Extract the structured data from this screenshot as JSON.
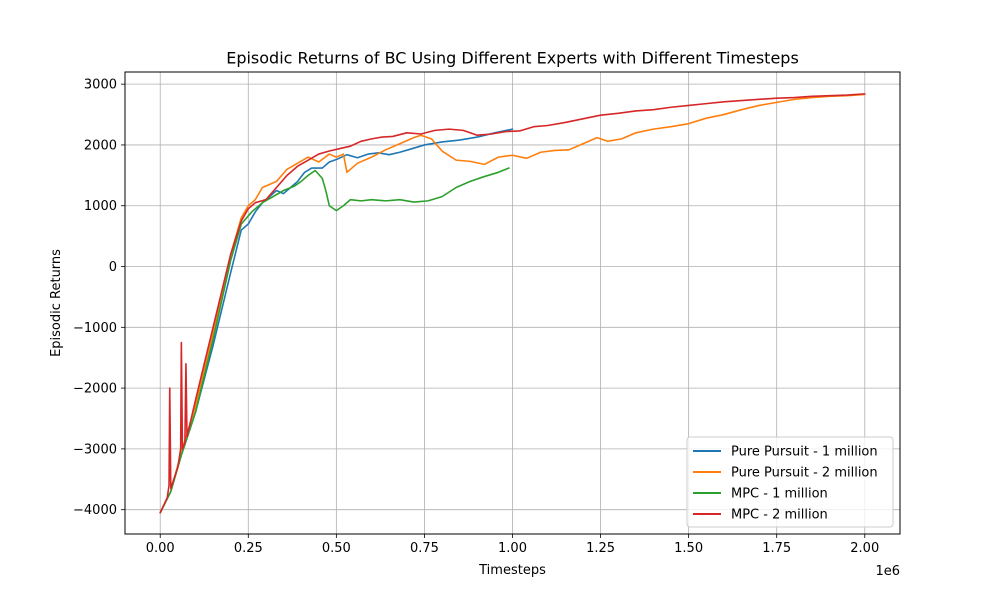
{
  "chart_data": {
    "type": "line",
    "title": "Episodic Returns of BC Using Different Experts with Different Timesteps",
    "xlabel": "Timesteps",
    "ylabel": "Episodic Returns",
    "x_offset_label": "1e6",
    "xlim": [
      -0.1,
      2.1
    ],
    "ylim": [
      -4400,
      3200
    ],
    "xticks": [
      0.0,
      0.25,
      0.5,
      0.75,
      1.0,
      1.25,
      1.5,
      1.75,
      2.0
    ],
    "xtick_labels": [
      "0.00",
      "0.25",
      "0.50",
      "0.75",
      "1.00",
      "1.25",
      "1.50",
      "1.75",
      "2.00"
    ],
    "yticks": [
      -4000,
      -3000,
      -2000,
      -1000,
      0,
      1000,
      2000,
      3000
    ],
    "ytick_labels": [
      "−4000",
      "−3000",
      "−2000",
      "−1000",
      "0",
      "1000",
      "2000",
      "3000"
    ],
    "grid": true,
    "legend_position": "lower-right",
    "series": [
      {
        "name": "Pure Pursuit - 1 million",
        "color": "#1f77b4",
        "points": [
          [
            0.0,
            -4050
          ],
          [
            0.03,
            -3700
          ],
          [
            0.06,
            -3100
          ],
          [
            0.1,
            -2400
          ],
          [
            0.15,
            -1300
          ],
          [
            0.2,
            -100
          ],
          [
            0.23,
            600
          ],
          [
            0.25,
            700
          ],
          [
            0.27,
            900
          ],
          [
            0.29,
            1050
          ],
          [
            0.31,
            1150
          ],
          [
            0.33,
            1250
          ],
          [
            0.35,
            1200
          ],
          [
            0.37,
            1300
          ],
          [
            0.39,
            1400
          ],
          [
            0.41,
            1550
          ],
          [
            0.43,
            1620
          ],
          [
            0.46,
            1620
          ],
          [
            0.48,
            1720
          ],
          [
            0.5,
            1760
          ],
          [
            0.53,
            1840
          ],
          [
            0.56,
            1790
          ],
          [
            0.59,
            1850
          ],
          [
            0.62,
            1870
          ],
          [
            0.65,
            1840
          ],
          [
            0.68,
            1880
          ],
          [
            0.71,
            1930
          ],
          [
            0.75,
            2000
          ],
          [
            0.8,
            2050
          ],
          [
            0.85,
            2080
          ],
          [
            0.9,
            2130
          ],
          [
            0.95,
            2200
          ],
          [
            1.0,
            2260
          ]
        ]
      },
      {
        "name": "Pure Pursuit - 2 million",
        "color": "#ff7f0e",
        "points": [
          [
            0.0,
            -4050
          ],
          [
            0.03,
            -3700
          ],
          [
            0.06,
            -3050
          ],
          [
            0.1,
            -2300
          ],
          [
            0.15,
            -1100
          ],
          [
            0.2,
            200
          ],
          [
            0.23,
            800
          ],
          [
            0.25,
            1000
          ],
          [
            0.27,
            1100
          ],
          [
            0.29,
            1300
          ],
          [
            0.31,
            1350
          ],
          [
            0.33,
            1400
          ],
          [
            0.36,
            1600
          ],
          [
            0.39,
            1700
          ],
          [
            0.42,
            1800
          ],
          [
            0.45,
            1720
          ],
          [
            0.48,
            1850
          ],
          [
            0.5,
            1800
          ],
          [
            0.52,
            1850
          ],
          [
            0.53,
            1550
          ],
          [
            0.56,
            1700
          ],
          [
            0.6,
            1800
          ],
          [
            0.64,
            1920
          ],
          [
            0.68,
            2020
          ],
          [
            0.72,
            2120
          ],
          [
            0.74,
            2160
          ],
          [
            0.77,
            2100
          ],
          [
            0.8,
            1900
          ],
          [
            0.84,
            1750
          ],
          [
            0.88,
            1730
          ],
          [
            0.92,
            1680
          ],
          [
            0.96,
            1800
          ],
          [
            1.0,
            1830
          ],
          [
            1.04,
            1780
          ],
          [
            1.08,
            1880
          ],
          [
            1.12,
            1910
          ],
          [
            1.16,
            1920
          ],
          [
            1.2,
            2020
          ],
          [
            1.24,
            2120
          ],
          [
            1.27,
            2060
          ],
          [
            1.31,
            2100
          ],
          [
            1.35,
            2200
          ],
          [
            1.4,
            2260
          ],
          [
            1.45,
            2300
          ],
          [
            1.5,
            2350
          ],
          [
            1.55,
            2440
          ],
          [
            1.6,
            2500
          ],
          [
            1.65,
            2580
          ],
          [
            1.7,
            2650
          ],
          [
            1.75,
            2700
          ],
          [
            1.8,
            2750
          ],
          [
            1.85,
            2780
          ],
          [
            1.9,
            2800
          ],
          [
            1.95,
            2810
          ],
          [
            2.0,
            2830
          ]
        ]
      },
      {
        "name": "MPC - 1 million",
        "color": "#2ca02c",
        "points": [
          [
            0.0,
            -4050
          ],
          [
            0.03,
            -3700
          ],
          [
            0.06,
            -3100
          ],
          [
            0.1,
            -2400
          ],
          [
            0.15,
            -1200
          ],
          [
            0.2,
            100
          ],
          [
            0.23,
            700
          ],
          [
            0.26,
            900
          ],
          [
            0.29,
            1050
          ],
          [
            0.32,
            1150
          ],
          [
            0.35,
            1250
          ],
          [
            0.38,
            1320
          ],
          [
            0.4,
            1400
          ],
          [
            0.42,
            1500
          ],
          [
            0.44,
            1580
          ],
          [
            0.46,
            1450
          ],
          [
            0.47,
            1250
          ],
          [
            0.48,
            1000
          ],
          [
            0.5,
            920
          ],
          [
            0.52,
            1000
          ],
          [
            0.54,
            1100
          ],
          [
            0.57,
            1080
          ],
          [
            0.6,
            1100
          ],
          [
            0.64,
            1080
          ],
          [
            0.68,
            1100
          ],
          [
            0.72,
            1060
          ],
          [
            0.76,
            1080
          ],
          [
            0.8,
            1150
          ],
          [
            0.84,
            1300
          ],
          [
            0.88,
            1400
          ],
          [
            0.92,
            1480
          ],
          [
            0.96,
            1550
          ],
          [
            0.99,
            1620
          ]
        ]
      },
      {
        "name": "MPC - 2 million",
        "color": "#d62728",
        "points": [
          [
            0.0,
            -4050
          ],
          [
            0.02,
            -3800
          ],
          [
            0.025,
            -3600
          ],
          [
            0.027,
            -2000
          ],
          [
            0.03,
            -3650
          ],
          [
            0.05,
            -3300
          ],
          [
            0.058,
            -3000
          ],
          [
            0.06,
            -1250
          ],
          [
            0.063,
            -3000
          ],
          [
            0.07,
            -2900
          ],
          [
            0.073,
            -1600
          ],
          [
            0.076,
            -2800
          ],
          [
            0.1,
            -2200
          ],
          [
            0.15,
            -1000
          ],
          [
            0.2,
            200
          ],
          [
            0.23,
            750
          ],
          [
            0.25,
            950
          ],
          [
            0.27,
            1050
          ],
          [
            0.3,
            1100
          ],
          [
            0.33,
            1300
          ],
          [
            0.36,
            1500
          ],
          [
            0.39,
            1650
          ],
          [
            0.42,
            1750
          ],
          [
            0.45,
            1850
          ],
          [
            0.48,
            1900
          ],
          [
            0.51,
            1940
          ],
          [
            0.54,
            1980
          ],
          [
            0.57,
            2060
          ],
          [
            0.6,
            2100
          ],
          [
            0.63,
            2130
          ],
          [
            0.66,
            2140
          ],
          [
            0.7,
            2200
          ],
          [
            0.74,
            2180
          ],
          [
            0.78,
            2240
          ],
          [
            0.82,
            2260
          ],
          [
            0.86,
            2240
          ],
          [
            0.9,
            2160
          ],
          [
            0.94,
            2180
          ],
          [
            0.98,
            2220
          ],
          [
            1.02,
            2230
          ],
          [
            1.06,
            2300
          ],
          [
            1.1,
            2320
          ],
          [
            1.15,
            2370
          ],
          [
            1.2,
            2430
          ],
          [
            1.25,
            2490
          ],
          [
            1.3,
            2520
          ],
          [
            1.35,
            2560
          ],
          [
            1.4,
            2580
          ],
          [
            1.45,
            2620
          ],
          [
            1.5,
            2650
          ],
          [
            1.55,
            2680
          ],
          [
            1.6,
            2710
          ],
          [
            1.65,
            2730
          ],
          [
            1.7,
            2750
          ],
          [
            1.75,
            2770
          ],
          [
            1.8,
            2780
          ],
          [
            1.85,
            2800
          ],
          [
            1.9,
            2810
          ],
          [
            1.95,
            2820
          ],
          [
            2.0,
            2840
          ]
        ]
      }
    ]
  }
}
